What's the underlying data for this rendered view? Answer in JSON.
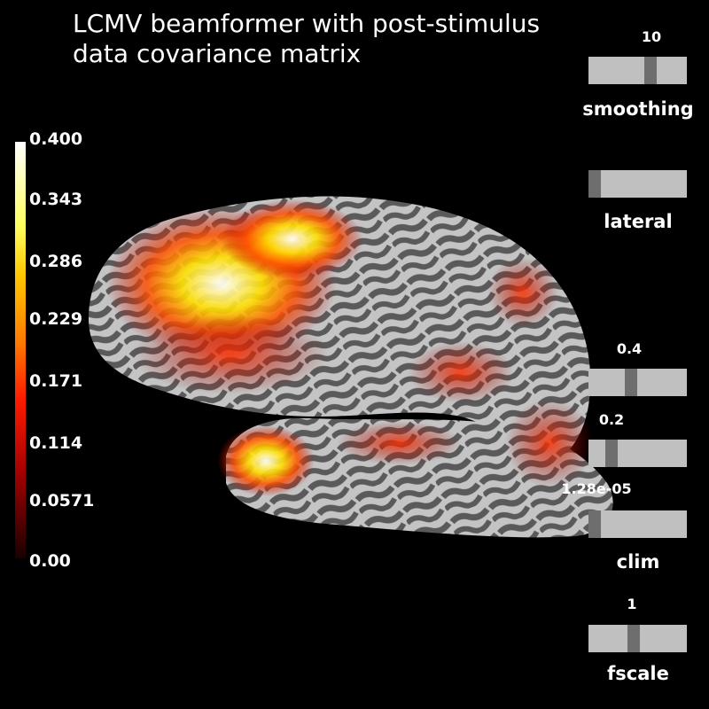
{
  "title": {
    "line1": "LCMV beamformer with post-stimulus",
    "line2": "data covariance matrix"
  },
  "colorbar": {
    "ticks": [
      "0.400",
      "0.343",
      "0.286",
      "0.229",
      "0.171",
      "0.114",
      "0.0571",
      "0.00"
    ]
  },
  "sliders": {
    "smoothing": {
      "value": "10",
      "label": "smoothing",
      "fraction": 0.65
    },
    "view": {
      "value": "",
      "label": "lateral",
      "fraction": 0.0
    },
    "clim_max": {
      "value": "0.4",
      "fraction": 0.42
    },
    "clim_mid": {
      "value": "0.2",
      "fraction": 0.2
    },
    "clim_min": {
      "value": "1.28e-05",
      "label": "clim",
      "fraction": 0.0
    },
    "fscale": {
      "value": "1",
      "label": "fscale",
      "fraction": 0.45
    }
  },
  "colors": {
    "background": "#000000",
    "slider_track": "#c0c0c0",
    "slider_knob": "#6e6e6e",
    "cortex_light": "#c8c8c8",
    "cortex_dark": "#555555",
    "activation_hot": "#ff2000"
  }
}
